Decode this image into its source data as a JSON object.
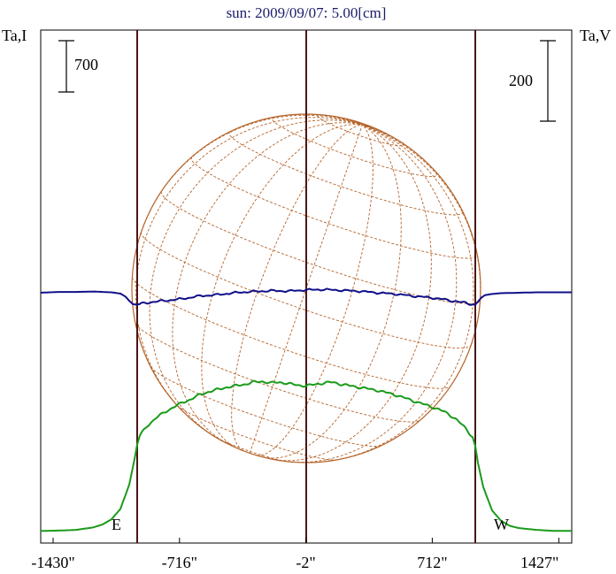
{
  "chart_data": {
    "type": "line",
    "title": "sun: 2009/09/07: 5.00[cm]",
    "ylabel_left": "Ta,I",
    "ylabel_right": "Ta,V",
    "scale_left_label": "700",
    "scale_right_label": "200",
    "x_tick_labels": [
      "-1430\"",
      "-716\"",
      "-2\"",
      "712\"",
      "1427\""
    ],
    "x_ticks": [
      -1430,
      -716,
      -2,
      712,
      1427
    ],
    "xlim": [
      -1500,
      1500
    ],
    "limb_labels": {
      "east": "E",
      "west": "W"
    },
    "limb_x": [
      -955,
      955
    ],
    "center_x": 0,
    "series": [
      {
        "color": "#1a9a1a",
        "x": [
          -1500,
          -1400,
          -1300,
          -1200,
          -1150,
          -1100,
          -1050,
          -1000,
          -970,
          -955,
          -940,
          -900,
          -850,
          -800,
          -750,
          -700,
          -650,
          -600,
          -550,
          -500,
          -450,
          -400,
          -350,
          -300,
          -250,
          -200,
          -150,
          -100,
          -50,
          0,
          50,
          100,
          150,
          200,
          250,
          300,
          350,
          400,
          450,
          500,
          550,
          600,
          650,
          700,
          750,
          800,
          850,
          900,
          940,
          955,
          970,
          1000,
          1050,
          1100,
          1150,
          1200,
          1300,
          1400,
          1500
        ],
        "values": [
          20,
          25,
          35,
          70,
          110,
          180,
          320,
          650,
          1000,
          1200,
          1320,
          1450,
          1560,
          1640,
          1710,
          1770,
          1820,
          1880,
          1920,
          1950,
          1980,
          2000,
          2020,
          2050,
          2060,
          2040,
          2050,
          2030,
          2010,
          2000,
          2020,
          2040,
          2050,
          2020,
          2000,
          1980,
          1960,
          1940,
          1910,
          1880,
          1840,
          1800,
          1760,
          1720,
          1680,
          1620,
          1540,
          1420,
          1300,
          1180,
          950,
          620,
          300,
          160,
          90,
          60,
          35,
          20,
          20
        ]
      },
      {
        "color": "#10108a",
        "x": [
          -1500,
          -1400,
          -1300,
          -1200,
          -1100,
          -1050,
          -1020,
          -1000,
          -980,
          -960,
          -940,
          -900,
          -850,
          -800,
          -700,
          -600,
          -500,
          -400,
          -300,
          -200,
          -100,
          0,
          100,
          200,
          300,
          400,
          500,
          600,
          700,
          800,
          850,
          900,
          930,
          955,
          970,
          990,
          1010,
          1050,
          1100,
          1200,
          1300,
          1400,
          1500
        ],
        "values": [
          0,
          2,
          2,
          3,
          1,
          -2,
          -10,
          -20,
          -28,
          -30,
          -28,
          -25,
          -22,
          -20,
          -15,
          -8,
          -5,
          0,
          3,
          5,
          4,
          7,
          8,
          6,
          4,
          0,
          -3,
          -8,
          -12,
          -18,
          -22,
          -25,
          -28,
          -30,
          -22,
          -12,
          -6,
          -3,
          -1,
          0,
          1,
          1,
          1
        ]
      }
    ]
  }
}
